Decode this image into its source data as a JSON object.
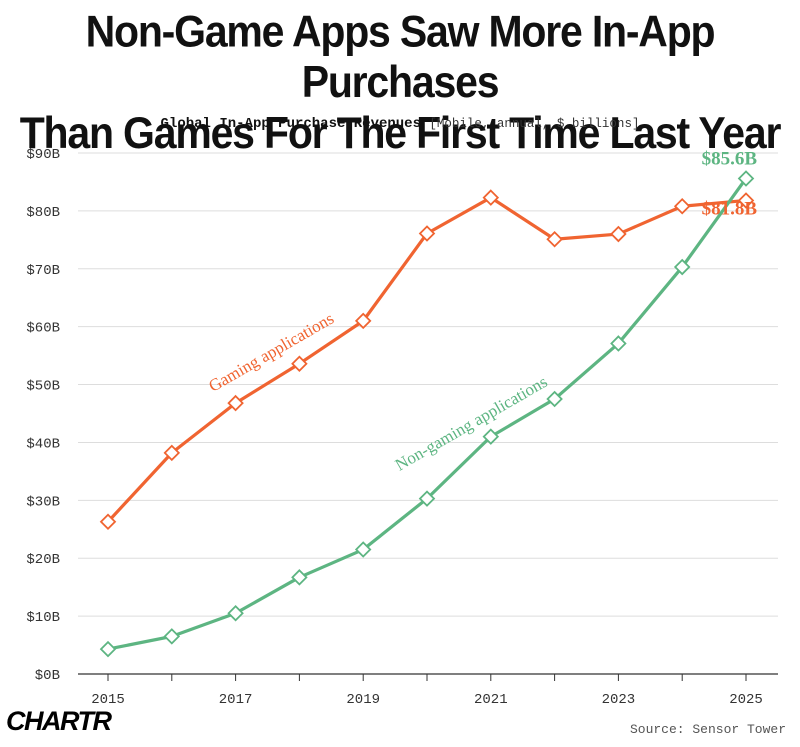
{
  "header": {
    "title_line1": "Non-Game Apps Saw More In-App Purchases",
    "title_line2": "Than Games For The First Time Last Year",
    "subtitle": "Global In-App Purchase Revenues",
    "subtitle_unit": "[Mobile, annual, $ billions]"
  },
  "footer": {
    "logo": "CHARTR",
    "source": "Source: Sensor Tower"
  },
  "colors": {
    "gaming": "#f06431",
    "non_gaming": "#5db582",
    "axis": "#333333",
    "grid": "#dddddd"
  },
  "chart_data": {
    "type": "line",
    "title": "Non-Game Apps Saw More In-App Purchases Than Games For The First Time Last Year",
    "subtitle": "Global In-App Purchase Revenues [Mobile, annual, $ billions]",
    "x": [
      2015,
      2016,
      2017,
      2018,
      2019,
      2020,
      2021,
      2022,
      2023,
      2024,
      2025
    ],
    "x_tick_labels": [
      "2015",
      "2017",
      "2019",
      "2021",
      "2023",
      "2025"
    ],
    "x_tick_values": [
      2015,
      2017,
      2019,
      2021,
      2023,
      2025
    ],
    "y_tick_labels": [
      "$0B",
      "$10B",
      "$20B",
      "$30B",
      "$40B",
      "$50B",
      "$60B",
      "$70B",
      "$80B",
      "$90B"
    ],
    "y_tick_values": [
      0,
      10,
      20,
      30,
      40,
      50,
      60,
      70,
      80,
      90
    ],
    "ylim": [
      0,
      90
    ],
    "xlim": [
      2015,
      2025
    ],
    "grid": "horizontal",
    "series": [
      {
        "name": "Gaming applications",
        "color": "#f06431",
        "x": [
          2015,
          2016,
          2017,
          2018,
          2019,
          2020,
          2021,
          2022,
          2023,
          2024,
          2025
        ],
        "values": [
          26.3,
          38.2,
          46.8,
          53.6,
          61.0,
          76.1,
          82.3,
          75.1,
          76.0,
          80.8,
          81.8
        ],
        "end_label": "$81.8B"
      },
      {
        "name": "Non-gaming applications",
        "color": "#5db582",
        "x": [
          2015,
          2016,
          2017,
          2018,
          2019,
          2020,
          2021,
          2022,
          2023,
          2024,
          2025
        ],
        "values": [
          4.3,
          6.5,
          10.5,
          16.7,
          21.5,
          30.3,
          41.0,
          47.5,
          57.1,
          70.3,
          85.6
        ],
        "end_label": "$85.6B"
      }
    ]
  }
}
